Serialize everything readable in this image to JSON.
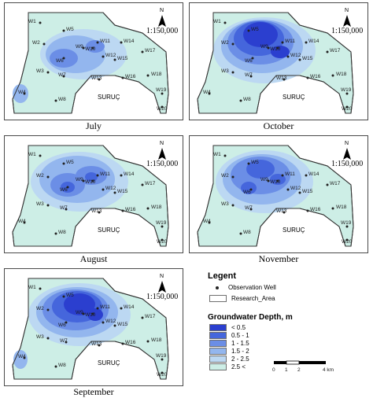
{
  "scale_text": "1:150,000",
  "north_label": "N",
  "town_label": "SURUÇ",
  "panels": [
    {
      "month": "July",
      "wells": [
        "W1",
        "W2",
        "W3",
        "W4",
        "W5",
        "W6",
        "W7",
        "W8",
        "W9",
        "W10",
        "W11",
        "W12",
        "W13",
        "W14",
        "W15",
        "W16",
        "W17",
        "W18",
        "W19",
        "W20"
      ]
    },
    {
      "month": "October",
      "wells": [
        "W1",
        "W2",
        "W3",
        "W4",
        "W5",
        "W6",
        "W7",
        "W8",
        "W9",
        "W10",
        "W11",
        "W12",
        "W13",
        "W14",
        "W15",
        "W16",
        "W17",
        "W18",
        "W19",
        "W20"
      ]
    },
    {
      "month": "August",
      "wells": [
        "W1",
        "W2",
        "W3",
        "W4",
        "W5",
        "W6",
        "W7",
        "W8",
        "W9",
        "W10",
        "W11",
        "W12",
        "W13",
        "W14",
        "W15",
        "W16",
        "W17",
        "W18",
        "W19",
        "W20"
      ]
    },
    {
      "month": "November",
      "wells": [
        "W1",
        "W2",
        "W3",
        "W4",
        "W5",
        "W6",
        "W7",
        "W8",
        "W9",
        "W10",
        "W11",
        "W12",
        "W13",
        "W14",
        "W15",
        "W16",
        "W17",
        "W18",
        "W19",
        "W20"
      ]
    },
    {
      "month": "September",
      "wells": [
        "W1",
        "W2",
        "W3",
        "W4",
        "W5",
        "W6",
        "W7",
        "W8",
        "W9",
        "W10",
        "W11",
        "W12",
        "W13",
        "W14",
        "W15",
        "W16",
        "W17",
        "W18",
        "W19",
        "W20"
      ]
    }
  ],
  "legend": {
    "title": "Legent",
    "observation_well": "Observation Well",
    "research_area": "Research_Area",
    "depth_title": "Groundwater Depth, m",
    "classes": [
      {
        "label": "< 0.5",
        "color": "#2b3fcf"
      },
      {
        "label": "0.5 - 1",
        "color": "#4566dc"
      },
      {
        "label": "1 - 1.5",
        "color": "#6b8ee6"
      },
      {
        "label": "1.5 - 2",
        "color": "#93b6ee"
      },
      {
        "label": "2 - 2.5",
        "color": "#bcd8f2"
      },
      {
        "label": "2.5 <",
        "color": "#cdeee6"
      }
    ]
  },
  "scalebar": {
    "ticks": [
      "0",
      "1",
      "2",
      "4 km"
    ]
  }
}
